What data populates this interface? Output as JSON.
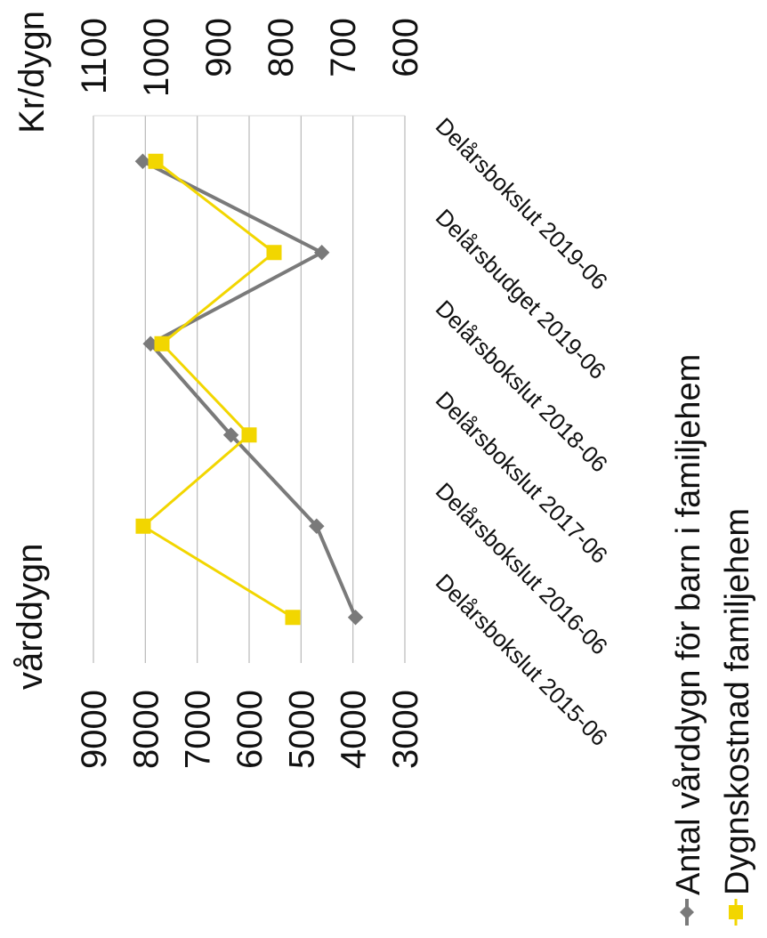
{
  "chart_data": {
    "type": "line",
    "categories": [
      "Delårsbokslut 2015-06",
      "Delårsbokslut 2016-06",
      "Delårsbokslut 2017-06",
      "Delårsbokslut 2018-06",
      "Delårsbudget 2019-06",
      "Delårsbokslut 2019-06"
    ],
    "left_axis": {
      "label": "vårddygn",
      "ticks": [
        "9000",
        "8000",
        "7000",
        "6000",
        "5000",
        "4000",
        "3000"
      ],
      "range": [
        3000,
        9000
      ]
    },
    "right_axis": {
      "label": "Kr/dygn",
      "ticks": [
        "1100",
        "1000",
        "900",
        "800",
        "700",
        "600"
      ],
      "range": [
        600,
        1100
      ]
    },
    "series": [
      {
        "name": "Antal vårddygn för barn i familjehem",
        "axis": "left",
        "color": "#7a7a7a",
        "marker": "diamond",
        "values": [
          3950,
          4700,
          6350,
          7900,
          4600,
          8050
        ]
      },
      {
        "name": "Dygnskostnad familjehem",
        "axis": "right",
        "color": "#f2d600",
        "marker": "square",
        "values": [
          780,
          1020,
          850,
          990,
          810,
          1000
        ]
      }
    ],
    "grid": true,
    "legend_position": "bottom"
  }
}
